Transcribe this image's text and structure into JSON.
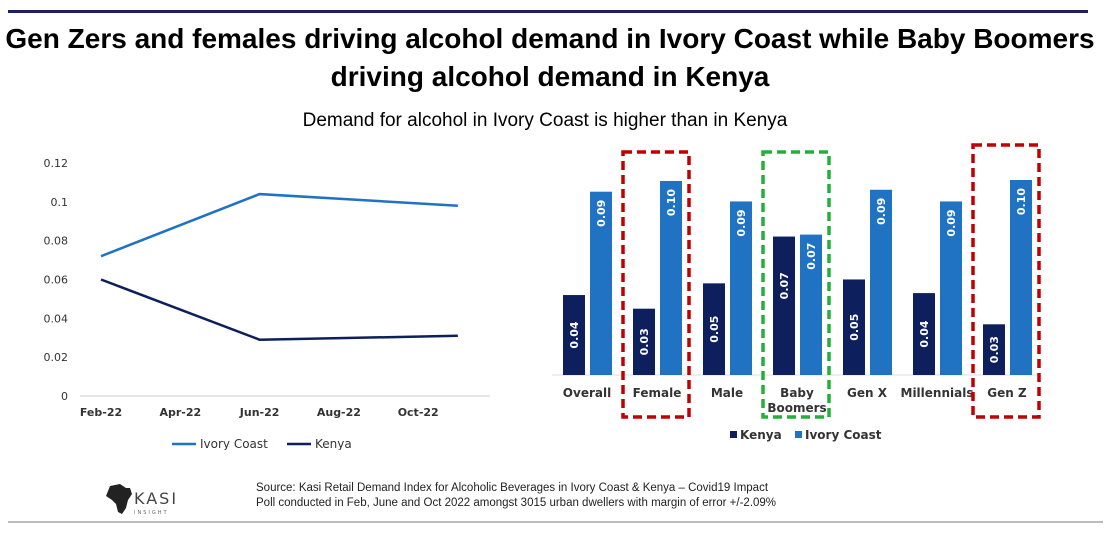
{
  "title": "Gen Zers and females driving alcohol demand in Ivory Coast while Baby Boomers driving alcohol demand in Kenya",
  "subtitle": "Demand for alcohol in Ivory Coast is higher than in Kenya",
  "source_line1": "Source: Kasi Retail Demand Index for Alcoholic Beverages  in Ivory Coast & Kenya   – Covid19 Impact",
  "source_line2": "Poll conducted in Feb, June and Oct 2022 amongst 3015  urban dwellers with margin of error +/-2.09%",
  "logo_text": "KASI INSIGHT",
  "colors": {
    "ivory_coast": "#2072c2",
    "kenya": "#0d1f5c",
    "highlight_red": "#c00000",
    "highlight_green": "#22b03a"
  },
  "chart_data": [
    {
      "type": "line",
      "x_ticks": [
        "Feb-22",
        "Apr-22",
        "Jun-22",
        "Aug-22",
        "Oct-22"
      ],
      "x": [
        "2022-02",
        "2022-06",
        "2022-11"
      ],
      "y_ticks": [
        "0",
        "0.02",
        "0.04",
        "0.06",
        "0.08",
        "0.1",
        "0.12"
      ],
      "ylim": [
        0,
        0.12
      ],
      "grid": false,
      "legend": "bottom",
      "series": [
        {
          "name": "Ivory Coast",
          "values": [
            0.072,
            0.104,
            0.098
          ]
        },
        {
          "name": "Kenya",
          "values": [
            0.06,
            0.029,
            0.031
          ]
        }
      ]
    },
    {
      "type": "bar",
      "categories": [
        "Overall",
        "Female",
        "Male",
        "Baby Boomers",
        "Gen X",
        "Millennials",
        "Gen Z"
      ],
      "series": [
        {
          "name": "Kenya",
          "values": [
            0.041,
            0.034,
            0.047,
            0.071,
            0.049,
            0.042,
            0.026
          ],
          "labels": [
            "0.04",
            "0.03",
            "0.05",
            "0.07",
            "0.05",
            "0.04",
            "0.03"
          ]
        },
        {
          "name": "Ivory Coast",
          "values": [
            0.094,
            0.0995,
            0.089,
            0.072,
            0.095,
            0.089,
            0.1
          ],
          "labels": [
            "0.09",
            "0.10",
            "0.09",
            "0.07",
            "0.09",
            "0.09",
            "0.10"
          ]
        }
      ],
      "legend": "bottom",
      "highlights": [
        {
          "category": "Female",
          "color": "red"
        },
        {
          "category": "Baby Boomers",
          "color": "green"
        },
        {
          "category": "Gen Z",
          "color": "red"
        }
      ]
    }
  ]
}
